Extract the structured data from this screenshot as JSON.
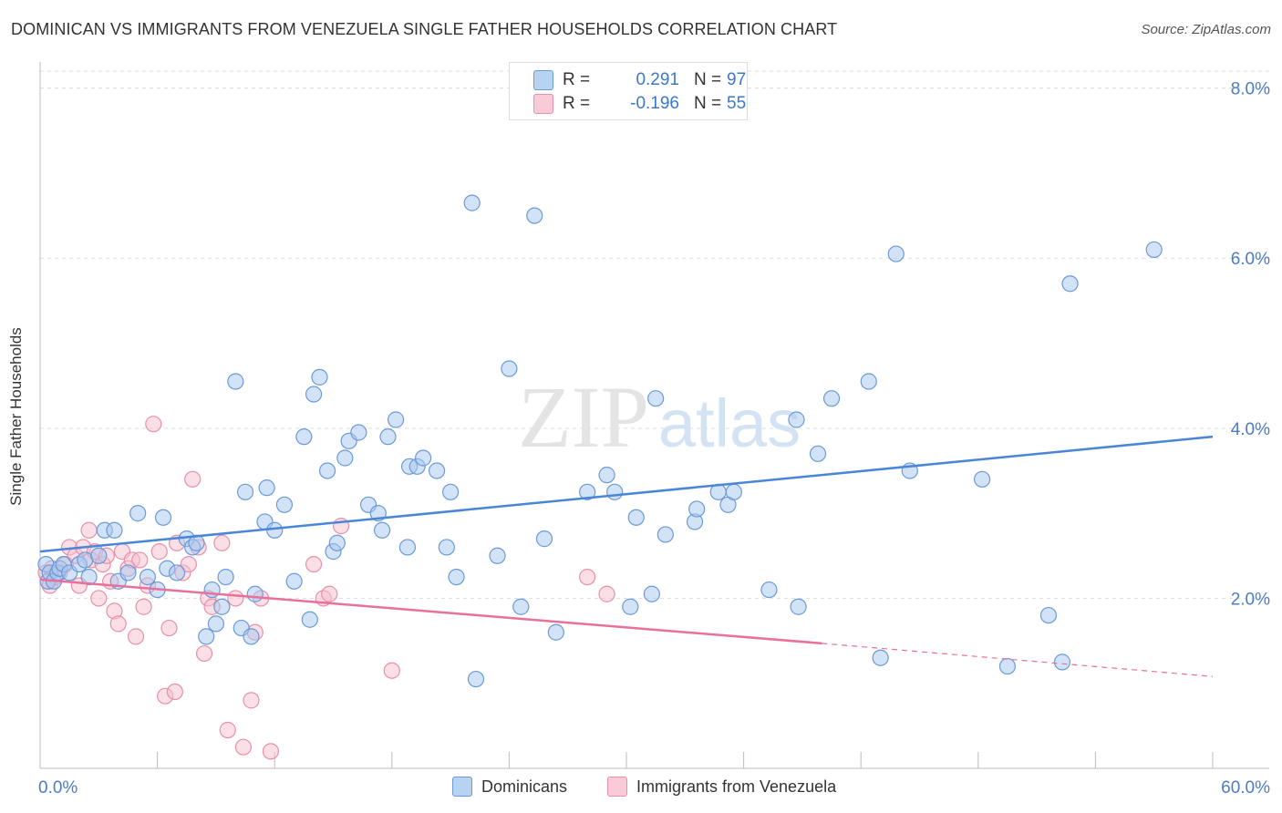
{
  "header": {
    "title": "DOMINICAN VS IMMIGRANTS FROM VENEZUELA SINGLE FATHER HOUSEHOLDS CORRELATION CHART",
    "source": "Source: ZipAtlas.com"
  },
  "watermark": {
    "zip": "ZIP",
    "atlas": "atlas"
  },
  "legend_top": [
    {
      "r_label": "R =",
      "r_value": "0.291",
      "n_label": "N =",
      "n_value": "97",
      "color": "#a8c8f0",
      "border": "#6a9ad8"
    },
    {
      "r_label": "R =",
      "r_value": "-0.196",
      "n_label": "N =",
      "n_value": "55",
      "color": "#f8c0d0",
      "border": "#e890a8"
    }
  ],
  "legend_bottom": [
    {
      "label": "Dominicans",
      "color": "#a8c8f0",
      "border": "#6a9ad8"
    },
    {
      "label": "Immigrants from Venezuela",
      "color": "#f8c0d0",
      "border": "#e890a8"
    }
  ],
  "chart_data": {
    "type": "scatter",
    "title": "DOMINICAN VS IMMIGRANTS FROM VENEZUELA SINGLE FATHER HOUSEHOLDS CORRELATION CHART",
    "xlabel": "",
    "ylabel": "Single Father Households",
    "xlim": [
      0,
      60
    ],
    "ylim": [
      0,
      8.2
    ],
    "x_tick_labels": [
      "0.0%",
      "60.0%"
    ],
    "y_ticks": [
      2,
      4,
      6,
      8
    ],
    "y_tick_labels": [
      "2.0%",
      "4.0%",
      "6.0%",
      "8.0%"
    ],
    "grid": true,
    "colors": {
      "blue": "#4a86d8",
      "blue_fill": "#a8c8f0",
      "pink": "#e8709a",
      "pink_fill": "#f8c0d0",
      "tick_label": "#4a7cc8"
    },
    "series": [
      {
        "name": "Dominicans",
        "color": "#4a86d8",
        "points": [
          [
            0.3,
            2.4
          ],
          [
            0.4,
            2.2
          ],
          [
            0.5,
            2.3
          ],
          [
            0.7,
            2.2
          ],
          [
            0.9,
            2.3
          ],
          [
            1.0,
            2.35
          ],
          [
            1.2,
            2.4
          ],
          [
            1.5,
            2.3
          ],
          [
            2.0,
            2.4
          ],
          [
            2.3,
            2.45
          ],
          [
            2.5,
            2.25
          ],
          [
            3.0,
            2.5
          ],
          [
            3.3,
            2.8
          ],
          [
            4.0,
            2.2
          ],
          [
            4.5,
            2.3
          ],
          [
            3.8,
            2.8
          ],
          [
            5.0,
            3.0
          ],
          [
            5.5,
            2.25
          ],
          [
            6.0,
            2.1
          ],
          [
            6.5,
            2.35
          ],
          [
            6.3,
            2.95
          ],
          [
            7.0,
            2.3
          ],
          [
            7.5,
            2.7
          ],
          [
            7.8,
            2.6
          ],
          [
            8.0,
            2.65
          ],
          [
            8.5,
            1.55
          ],
          [
            8.8,
            2.1
          ],
          [
            9.0,
            1.7
          ],
          [
            9.3,
            1.9
          ],
          [
            9.5,
            2.25
          ],
          [
            10.0,
            4.55
          ],
          [
            10.3,
            1.65
          ],
          [
            10.5,
            3.25
          ],
          [
            10.8,
            1.55
          ],
          [
            11.0,
            2.05
          ],
          [
            11.5,
            2.9
          ],
          [
            11.6,
            3.3
          ],
          [
            12.0,
            2.8
          ],
          [
            12.5,
            3.1
          ],
          [
            13.0,
            2.2
          ],
          [
            13.5,
            3.9
          ],
          [
            13.8,
            1.75
          ],
          [
            14.0,
            4.4
          ],
          [
            14.3,
            4.6
          ],
          [
            14.7,
            3.5
          ],
          [
            15.0,
            2.55
          ],
          [
            15.2,
            2.65
          ],
          [
            15.6,
            3.65
          ],
          [
            15.8,
            3.85
          ],
          [
            16.3,
            3.95
          ],
          [
            16.8,
            3.1
          ],
          [
            17.3,
            3.0
          ],
          [
            17.5,
            2.8
          ],
          [
            17.8,
            3.9
          ],
          [
            18.2,
            4.1
          ],
          [
            18.8,
            2.6
          ],
          [
            18.9,
            3.55
          ],
          [
            19.3,
            3.55
          ],
          [
            19.6,
            3.65
          ],
          [
            20.3,
            3.5
          ],
          [
            20.8,
            2.6
          ],
          [
            21.0,
            3.25
          ],
          [
            21.3,
            2.25
          ],
          [
            22.1,
            6.65
          ],
          [
            22.3,
            1.05
          ],
          [
            23.4,
            2.5
          ],
          [
            24.0,
            4.7
          ],
          [
            24.6,
            1.9
          ],
          [
            25.3,
            6.5
          ],
          [
            25.8,
            2.7
          ],
          [
            26.4,
            1.6
          ],
          [
            28.0,
            3.25
          ],
          [
            29.4,
            3.25
          ],
          [
            29.0,
            3.45
          ],
          [
            30.5,
            2.95
          ],
          [
            30.2,
            1.9
          ],
          [
            31.3,
            2.05
          ],
          [
            31.5,
            4.35
          ],
          [
            32.0,
            2.75
          ],
          [
            33.5,
            2.9
          ],
          [
            33.6,
            3.05
          ],
          [
            34.7,
            3.25
          ],
          [
            35.2,
            3.1
          ],
          [
            35.5,
            3.25
          ],
          [
            37.3,
            2.1
          ],
          [
            38.7,
            4.1
          ],
          [
            38.8,
            1.9
          ],
          [
            39.8,
            3.7
          ],
          [
            40.5,
            4.35
          ],
          [
            42.4,
            4.55
          ],
          [
            43.0,
            1.3
          ],
          [
            43.8,
            6.05
          ],
          [
            44.5,
            3.5
          ],
          [
            48.2,
            3.4
          ],
          [
            49.5,
            1.2
          ],
          [
            51.6,
            1.8
          ],
          [
            52.3,
            1.25
          ],
          [
            52.7,
            5.7
          ],
          [
            57.0,
            6.1
          ]
        ],
        "trend": {
          "x": [
            0,
            60
          ],
          "y": [
            2.55,
            3.9
          ]
        }
      },
      {
        "name": "Immigrants from Venezuela",
        "color": "#e8709a",
        "points": [
          [
            0.3,
            2.3
          ],
          [
            0.4,
            2.2
          ],
          [
            0.5,
            2.15
          ],
          [
            0.6,
            2.35
          ],
          [
            0.8,
            2.25
          ],
          [
            1.0,
            2.3
          ],
          [
            1.3,
            2.4
          ],
          [
            1.5,
            2.6
          ],
          [
            1.8,
            2.5
          ],
          [
            2.0,
            2.15
          ],
          [
            2.2,
            2.6
          ],
          [
            2.5,
            2.8
          ],
          [
            2.6,
            2.45
          ],
          [
            2.8,
            2.55
          ],
          [
            3.0,
            2.0
          ],
          [
            3.2,
            2.4
          ],
          [
            3.4,
            2.5
          ],
          [
            3.6,
            2.2
          ],
          [
            3.8,
            1.85
          ],
          [
            4.0,
            1.7
          ],
          [
            4.2,
            2.55
          ],
          [
            4.5,
            2.35
          ],
          [
            4.7,
            2.45
          ],
          [
            4.9,
            1.55
          ],
          [
            5.1,
            2.45
          ],
          [
            5.3,
            1.9
          ],
          [
            5.5,
            2.15
          ],
          [
            5.8,
            4.05
          ],
          [
            6.1,
            2.55
          ],
          [
            6.4,
            0.85
          ],
          [
            6.6,
            1.65
          ],
          [
            6.9,
            0.9
          ],
          [
            7.0,
            2.65
          ],
          [
            7.3,
            2.3
          ],
          [
            7.6,
            2.4
          ],
          [
            7.8,
            3.4
          ],
          [
            8.1,
            2.6
          ],
          [
            8.4,
            1.35
          ],
          [
            8.6,
            2.0
          ],
          [
            8.8,
            1.9
          ],
          [
            9.3,
            2.65
          ],
          [
            9.6,
            0.45
          ],
          [
            10.0,
            2.0
          ],
          [
            10.4,
            0.25
          ],
          [
            10.8,
            0.8
          ],
          [
            11.0,
            1.6
          ],
          [
            11.3,
            2.0
          ],
          [
            11.8,
            0.2
          ],
          [
            14.0,
            2.4
          ],
          [
            14.5,
            2.0
          ],
          [
            14.8,
            2.05
          ],
          [
            15.4,
            2.85
          ],
          [
            18.0,
            1.15
          ],
          [
            28.0,
            2.25
          ],
          [
            29.0,
            2.05
          ]
        ],
        "trend": {
          "x": [
            0,
            40
          ],
          "y": [
            2.22,
            1.47
          ],
          "dashed_x": [
            40,
            60
          ],
          "dashed_y": [
            1.47,
            1.08
          ]
        }
      }
    ]
  }
}
